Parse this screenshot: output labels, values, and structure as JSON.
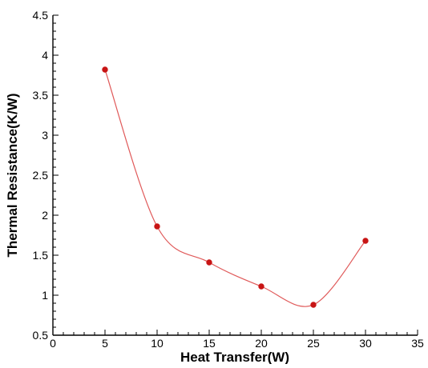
{
  "chart_data": {
    "type": "line",
    "xlabel": "Heat Transfer(W)",
    "ylabel": "Thermal Resistance(K/W)",
    "xlim": [
      0,
      35
    ],
    "ylim": [
      0.5,
      4.5
    ],
    "x_ticks": [
      0,
      5,
      10,
      15,
      20,
      25,
      30,
      35
    ],
    "y_ticks": [
      0.5,
      1,
      1.5,
      2,
      2.5,
      3,
      3.5,
      4,
      4.5
    ],
    "x_tick_labels": [
      "0",
      "5",
      "10",
      "15",
      "20",
      "25",
      "30",
      "35"
    ],
    "y_tick_labels": [
      "0.5",
      "1",
      "1.5",
      "2",
      "2.5",
      "3",
      "3.5",
      "4",
      "4.5"
    ],
    "grid": false,
    "series": [
      {
        "x": [
          5,
          10,
          15,
          20,
          25,
          30
        ],
        "y": [
          3.82,
          1.86,
          1.41,
          1.11,
          0.88,
          1.68
        ],
        "line_color": "#e05a5a",
        "marker_color": "#c81414",
        "line_style": "smooth curve with circle markers"
      }
    ]
  }
}
